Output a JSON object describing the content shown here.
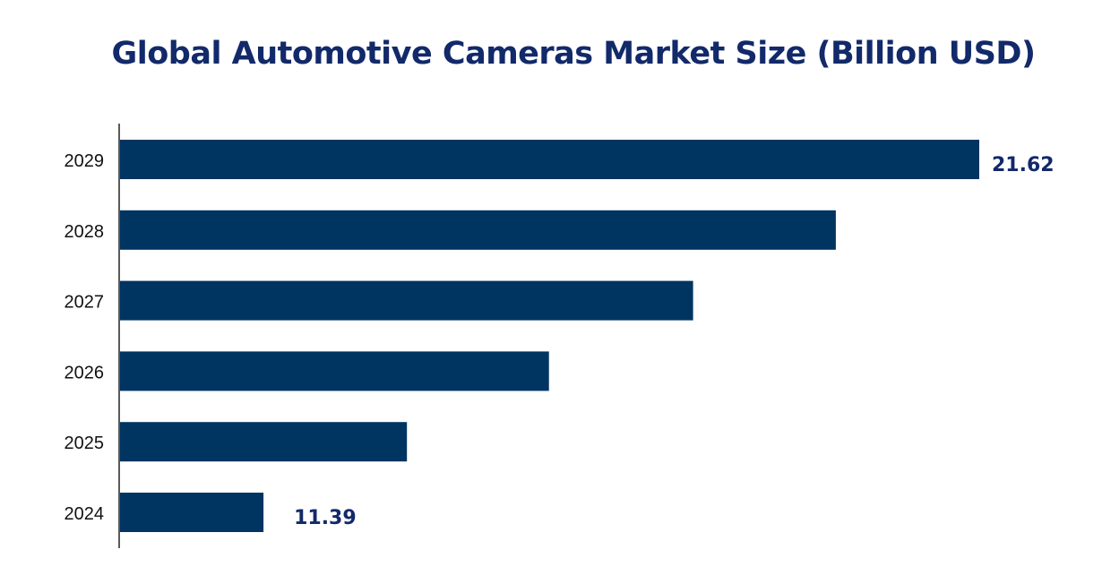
{
  "chart_data": {
    "type": "bar",
    "orientation": "horizontal",
    "title": "Global Automotive Cameras Market Size (Billion USD)",
    "categories": [
      "2029",
      "2028",
      "2027",
      "2026",
      "2025",
      "2024"
    ],
    "values": [
      21.62,
      19.57,
      17.53,
      15.47,
      13.44,
      11.39
    ],
    "data_labels": {
      "2029": "21.62",
      "2024": "11.39"
    },
    "xlim": [
      9.34,
      21.62
    ],
    "xlabel": "",
    "ylabel": "",
    "grid": false,
    "colors": {
      "bar": "#003461",
      "title": "#12296a",
      "label": "#12296a"
    }
  }
}
